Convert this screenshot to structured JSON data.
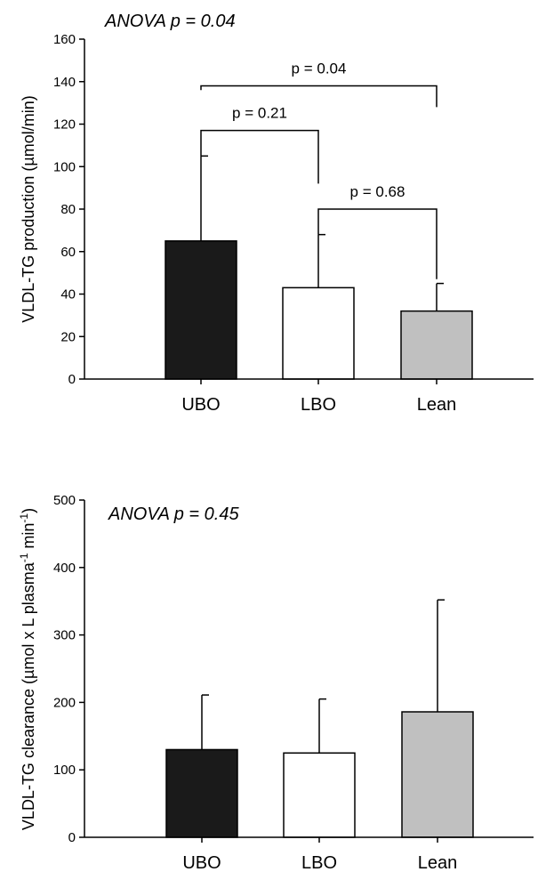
{
  "chart_data": [
    {
      "type": "bar",
      "categories": [
        "UBO",
        "LBO",
        "Lean"
      ],
      "values": [
        65,
        43,
        32
      ],
      "error_upper": [
        105,
        68,
        45
      ],
      "colors": [
        "#1a1a1a",
        "#ffffff",
        "#c0c0c0"
      ],
      "ylim": [
        0,
        160
      ],
      "yticks": [
        0,
        20,
        40,
        60,
        80,
        100,
        120,
        140,
        160
      ],
      "ytick_labels": [
        "0",
        "20",
        "40",
        "60",
        "80",
        "100",
        "120",
        "140",
        "160"
      ],
      "ylabel": "VLDL-TG production (µmol/min)",
      "annotation": {
        "label": "ANOVA",
        "text": " p = 0.04"
      },
      "comparisons": [
        {
          "from": 0,
          "to": 2,
          "label": "p = 0.04",
          "level": 138
        },
        {
          "from": 0,
          "to": 1,
          "label": "p = 0.21",
          "level": 117
        },
        {
          "from": 1,
          "to": 2,
          "label": "p = 0.68",
          "level": 80
        }
      ],
      "grid": false
    },
    {
      "type": "bar",
      "categories": [
        "UBO",
        "LBO",
        "Lean"
      ],
      "values": [
        130,
        125,
        186
      ],
      "error_upper": [
        211,
        205,
        352
      ],
      "colors": [
        "#1a1a1a",
        "#ffffff",
        "#c0c0c0"
      ],
      "ylim": [
        0,
        500
      ],
      "yticks": [
        0,
        100,
        200,
        300,
        400,
        500
      ],
      "ytick_labels": [
        "0",
        "100",
        "200",
        "300",
        "400",
        "500"
      ],
      "ylabel": {
        "main": "VLDL-TG clearance (µmol x L plasma",
        "sup1": "-1",
        "mid": " min",
        "sup2": "-1",
        "end": ")"
      },
      "annotation": {
        "label": "ANOVA",
        "text": " p = 0.45"
      },
      "grid": false
    }
  ]
}
